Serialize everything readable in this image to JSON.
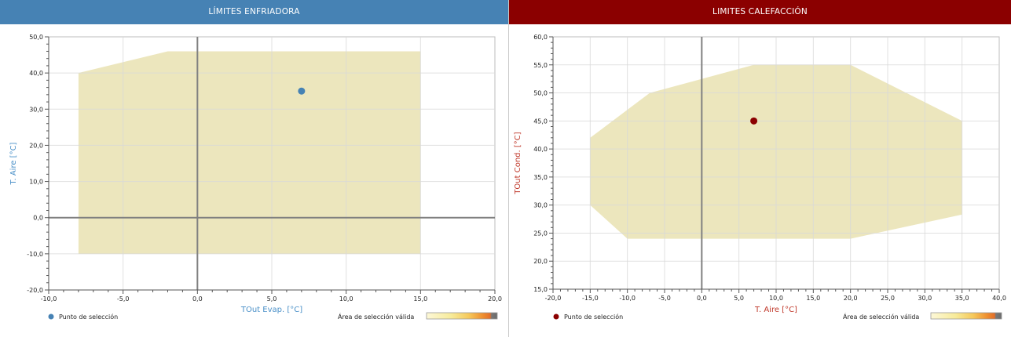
{
  "colors": {
    "left_header": "#4682B4",
    "right_header": "#8B0000",
    "left_accent": "#4a90c8",
    "right_accent": "#c0392b",
    "left_point": "#4682B4",
    "right_point": "#8B0000",
    "area_fill": "#ECE6BD",
    "grid": "#d9d9d9",
    "zero_axis": "#808080"
  },
  "panels": [
    {
      "header": "LÍMITES ENFRIADORA",
      "xlabel": "TOut Evap. [°C]",
      "ylabel": "T. Aire [°C]",
      "xticks": [
        "-10,0",
        "-5,0",
        "0,0",
        "5,0",
        "10,0",
        "15,0",
        "20,0"
      ],
      "yticks": [
        "50,0",
        "40,0",
        "30,0",
        "20,0",
        "10,0",
        "0,0",
        "-10,0",
        "-20,0"
      ],
      "legend_point": "Punto de selección",
      "legend_area": "Área de selección válida"
    },
    {
      "header": "LIMITES CALEFACCIÓN",
      "xlabel": "T. Aire [°C]",
      "ylabel": "TOut Cond. [°C]",
      "xticks": [
        "-20,0",
        "-15,0",
        "-10,0",
        "-5,0",
        "0,0",
        "5,0",
        "10,0",
        "15,0",
        "20,0",
        "25,0",
        "30,0",
        "35,0",
        "40,0"
      ],
      "yticks": [
        "60,0",
        "55,0",
        "50,0",
        "45,0",
        "40,0",
        "35,0",
        "30,0",
        "25,0",
        "20,0",
        "15,0"
      ],
      "legend_point": "Punto de selección",
      "legend_area": "Área de selección válida"
    }
  ],
  "chart_data": [
    {
      "type": "scatter",
      "title": "LÍMITES ENFRIADORA",
      "xlabel": "TOut Evap. [°C]",
      "ylabel": "T. Aire [°C]",
      "xlim": [
        -10,
        20
      ],
      "ylim": [
        -20,
        50
      ],
      "xstep": 5,
      "ystep": 10,
      "grid": true,
      "legend_position": "bottom",
      "valid_area": {
        "name": "Área de selección válida",
        "polygon": [
          [
            -8,
            -10
          ],
          [
            -8,
            40
          ],
          [
            -2,
            46
          ],
          [
            15,
            46
          ],
          [
            15,
            -10
          ]
        ]
      },
      "series": [
        {
          "name": "Punto de selección",
          "x": [
            7
          ],
          "y": [
            35
          ]
        }
      ]
    },
    {
      "type": "scatter",
      "title": "LIMITES CALEFACCIÓN",
      "xlabel": "T. Aire [°C]",
      "ylabel": "TOut Cond. [°C]",
      "xlim": [
        -20,
        40
      ],
      "ylim": [
        15,
        60
      ],
      "xstep": 5,
      "ystep": 5,
      "grid": true,
      "legend_position": "bottom",
      "valid_area": {
        "name": "Área de selección válida",
        "polygon": [
          [
            -15,
            30
          ],
          [
            -15,
            42
          ],
          [
            -7,
            50
          ],
          [
            7,
            55
          ],
          [
            20,
            55
          ],
          [
            35,
            45
          ],
          [
            35,
            28.3
          ],
          [
            20,
            24
          ],
          [
            -10,
            24
          ]
        ]
      },
      "series": [
        {
          "name": "Punto de selección",
          "x": [
            7
          ],
          "y": [
            45
          ]
        }
      ]
    }
  ]
}
